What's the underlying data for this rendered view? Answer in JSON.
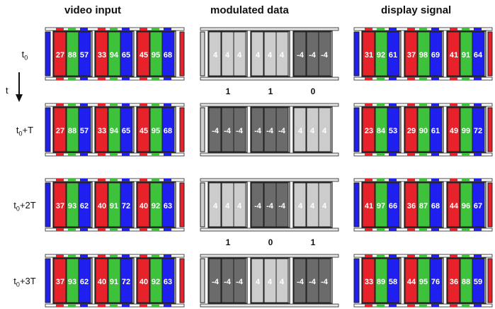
{
  "headers": {
    "video_input": "video input",
    "modulated_data": "modulated data",
    "display_signal": "display signal"
  },
  "time_axis_label": "t",
  "colors": {
    "red": "#e8222b",
    "green": "#3ec23c",
    "blue": "#1f1ff0",
    "light_gray": "#cccccc",
    "dark_gray": "#6b6b6b",
    "outline": "#222222"
  },
  "rows": [
    {
      "label_base": "t",
      "label_sub": "0",
      "label_suffix": "",
      "video": [
        [
          27,
          88,
          57
        ],
        [
          33,
          94,
          65
        ],
        [
          45,
          95,
          68
        ]
      ],
      "modulated": [
        {
          "shade": "light",
          "values": [
            "4",
            "4",
            "4"
          ]
        },
        {
          "shade": "light",
          "values": [
            "4",
            "4",
            "4"
          ]
        },
        {
          "shade": "dark",
          "values": [
            "-4",
            "-4",
            "-4"
          ]
        }
      ],
      "display": [
        [
          31,
          92,
          61
        ],
        [
          37,
          98,
          69
        ],
        [
          41,
          91,
          64
        ]
      ]
    },
    {
      "label_base": "t",
      "label_sub": "0",
      "label_suffix": "+T",
      "flags": [
        "1",
        "1",
        "0"
      ],
      "video": [
        [
          27,
          88,
          57
        ],
        [
          33,
          94,
          65
        ],
        [
          45,
          95,
          68
        ]
      ],
      "modulated": [
        {
          "shade": "dark",
          "values": [
            "-4",
            "-4",
            "-4"
          ]
        },
        {
          "shade": "dark",
          "values": [
            "-4",
            "-4",
            "-4"
          ]
        },
        {
          "shade": "light",
          "values": [
            "4",
            "4",
            "4"
          ]
        }
      ],
      "display": [
        [
          23,
          84,
          53
        ],
        [
          29,
          90,
          61
        ],
        [
          49,
          99,
          72
        ]
      ]
    },
    {
      "label_base": "t",
      "label_sub": "0",
      "label_suffix": "+2T",
      "video": [
        [
          37,
          93,
          62
        ],
        [
          40,
          91,
          72
        ],
        [
          40,
          92,
          63
        ]
      ],
      "modulated": [
        {
          "shade": "light",
          "values": [
            "4",
            "4",
            "4"
          ]
        },
        {
          "shade": "dark",
          "values": [
            "-4",
            "-4",
            "-4"
          ]
        },
        {
          "shade": "light",
          "values": [
            "4",
            "4",
            "4"
          ]
        }
      ],
      "display": [
        [
          41,
          97,
          66
        ],
        [
          36,
          87,
          68
        ],
        [
          44,
          96,
          67
        ]
      ]
    },
    {
      "label_base": "t",
      "label_sub": "0",
      "label_suffix": "+3T",
      "flags": [
        "1",
        "0",
        "1"
      ],
      "video": [
        [
          37,
          93,
          62
        ],
        [
          40,
          91,
          72
        ],
        [
          40,
          92,
          63
        ]
      ],
      "modulated": [
        {
          "shade": "dark",
          "values": [
            "-4",
            "-4",
            "-4"
          ]
        },
        {
          "shade": "light",
          "values": [
            "4",
            "4",
            "4"
          ]
        },
        {
          "shade": "dark",
          "values": [
            "-4",
            "-4",
            "-4"
          ]
        }
      ],
      "display": [
        [
          33,
          89,
          58
        ],
        [
          44,
          95,
          76
        ],
        [
          36,
          88,
          59
        ]
      ]
    }
  ]
}
